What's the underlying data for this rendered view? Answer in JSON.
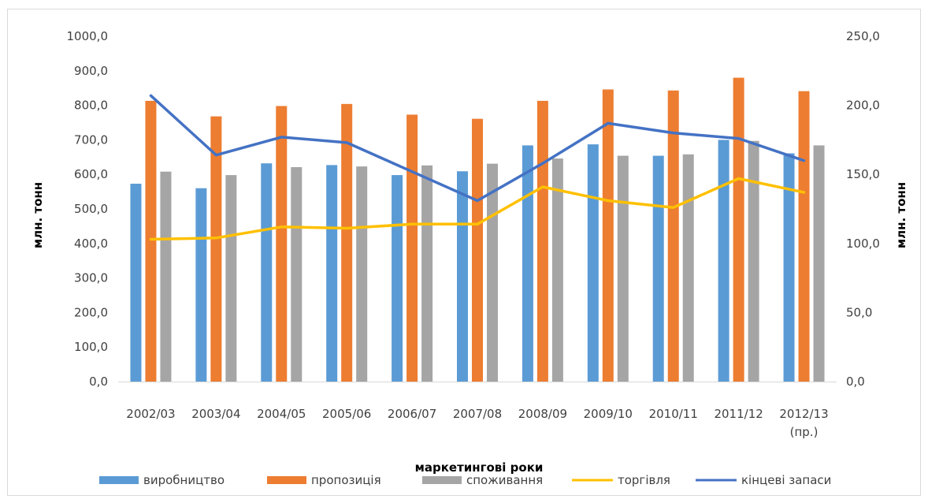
{
  "chart_data": {
    "type": "bar",
    "categories": [
      "2002/03",
      "2003/04",
      "2004/05",
      "2005/06",
      "2006/07",
      "2007/08",
      "2008/09",
      "2009/10",
      "2010/11",
      "2011/12",
      "2012/13"
    ],
    "category_sublabels": [
      "",
      "",
      "",
      "",
      "",
      "",
      "",
      "",
      "",
      "",
      "(пр.)"
    ],
    "xlabel": "маркетингові роки",
    "ylabel": "млн. тонн",
    "ylabel_right": "млн. тонн",
    "ylim": [
      0,
      1000
    ],
    "ylim_right": [
      0,
      250
    ],
    "yticks": [
      "0,0",
      "100,0",
      "200,0",
      "300,0",
      "400,0",
      "500,0",
      "600,0",
      "700,0",
      "800,0",
      "900,0",
      "1000,0"
    ],
    "yticks_right": [
      "0,0",
      "50,0",
      "100,0",
      "150,0",
      "200,0",
      "250,0"
    ],
    "legend_position": "bottom",
    "grid": false,
    "series": [
      {
        "name": "виробництво",
        "kind": "bar",
        "axis": "left",
        "color": "#5b9bd5",
        "values": [
          573,
          560,
          632,
          627,
          598,
          609,
          684,
          687,
          654,
          700,
          661
        ]
      },
      {
        "name": "пропозиція",
        "kind": "bar",
        "axis": "left",
        "color": "#ed7d31",
        "values": [
          813,
          768,
          798,
          804,
          773,
          761,
          813,
          846,
          843,
          880,
          841
        ]
      },
      {
        "name": "споживання",
        "kind": "bar",
        "axis": "left",
        "color": "#a5a5a5",
        "values": [
          608,
          598,
          621,
          623,
          626,
          631,
          646,
          654,
          658,
          697,
          684
        ]
      },
      {
        "name": "торгівля",
        "kind": "line",
        "axis": "right",
        "color": "#ffc000",
        "values": [
          103,
          104,
          112,
          111,
          114,
          114,
          141,
          131,
          126,
          147,
          137
        ]
      },
      {
        "name": "кінцеві запаси",
        "kind": "line",
        "axis": "right",
        "color": "#4472c4",
        "values": [
          207,
          164,
          177,
          173,
          152,
          131,
          158,
          187,
          180,
          176,
          160
        ]
      }
    ]
  }
}
